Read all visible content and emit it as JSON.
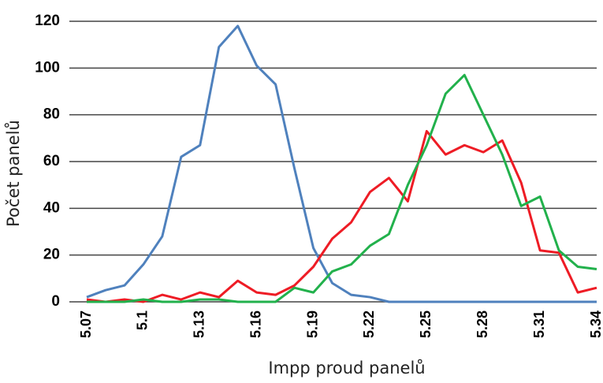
{
  "chart_data": {
    "type": "line",
    "x_label": "Impp proud panelů",
    "y_label": "Počet panelů",
    "x": [
      5.07,
      5.08,
      5.09,
      5.1,
      5.11,
      5.12,
      5.13,
      5.14,
      5.15,
      5.16,
      5.17,
      5.18,
      5.19,
      5.2,
      5.21,
      5.22,
      5.23,
      5.24,
      5.25,
      5.26,
      5.27,
      5.28,
      5.29,
      5.3,
      5.31,
      5.32,
      5.33,
      5.34
    ],
    "series": [
      {
        "color": "#4f81bd",
        "values": [
          2,
          5,
          7,
          16,
          28,
          62,
          67,
          109,
          118,
          101,
          93,
          57,
          23,
          8,
          3,
          2,
          0,
          0,
          0,
          0,
          0,
          0,
          0,
          0,
          0,
          0,
          0,
          0
        ]
      },
      {
        "color": "#ee1c25",
        "values": [
          1,
          0,
          1,
          0,
          3,
          1,
          4,
          2,
          9,
          4,
          3,
          7,
          15,
          27,
          34,
          47,
          53,
          43,
          73,
          63,
          67,
          64,
          69,
          51,
          22,
          21,
          4,
          6
        ]
      },
      {
        "color": "#22b14c",
        "values": [
          0,
          0,
          0,
          1,
          0,
          0,
          1,
          1,
          0,
          0,
          0,
          6,
          4,
          13,
          16,
          24,
          29,
          50,
          67,
          89,
          97,
          80,
          63,
          41,
          45,
          22,
          15,
          14
        ]
      }
    ],
    "xlim": [
      5.07,
      5.34
    ],
    "xticks": [
      5.07,
      5.1,
      5.13,
      5.16,
      5.19,
      5.22,
      5.25,
      5.28,
      5.31,
      5.34
    ],
    "ylim": [
      0,
      120
    ],
    "yticks": [
      0,
      20,
      40,
      60,
      80,
      100,
      120
    ],
    "grid": true
  }
}
